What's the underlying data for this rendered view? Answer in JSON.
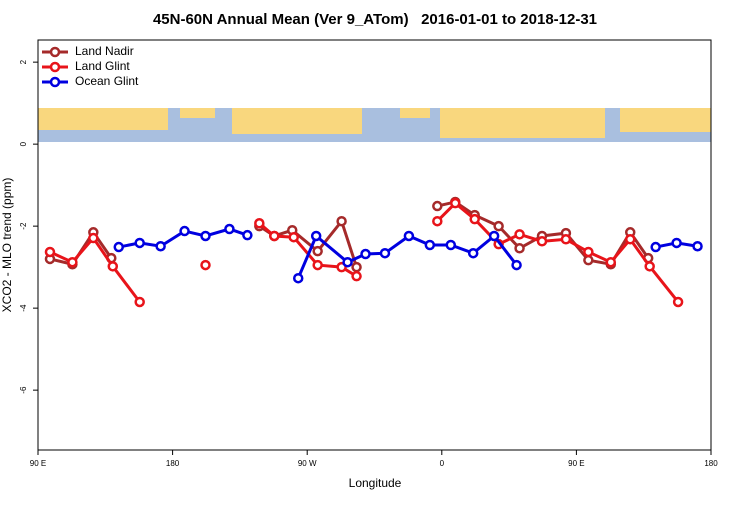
{
  "chart_data": {
    "type": "line",
    "title": "45N-60N Annual Mean (Ver 9_ATom)   2016-01-01 to 2018-12-31",
    "x_label": "Longitude",
    "y_label": "XCO2 - MLO trend (ppm)",
    "xlim": [
      -270,
      180
    ],
    "xticks": [
      {
        "value": -270,
        "label": "90 E"
      },
      {
        "value": -180,
        "label": "180"
      },
      {
        "value": -90,
        "label": "90 W"
      },
      0,
      {
        "value": 90,
        "label": "90 E"
      },
      180
    ],
    "ylim": [
      -7.46,
      2.54
    ],
    "yticks": [
      -6,
      -4,
      -2,
      0,
      2
    ],
    "legend": "top-left",
    "series": [
      {
        "name": "Land Nadir",
        "color": "#a52a2a",
        "x": [
          -262,
          -247,
          -233,
          -221,
          null,
          -122,
          -112,
          -100,
          -83,
          -67,
          -57,
          null,
          -3,
          9,
          22,
          38,
          52,
          67,
          83,
          98,
          113,
          126,
          138
        ],
        "values": [
          -2.8,
          -2.93,
          -2.15,
          -2.78,
          null,
          -2.0,
          -2.24,
          -2.1,
          -2.61,
          -1.88,
          -3.0,
          null,
          -1.51,
          -1.41,
          -1.73,
          -2.0,
          -2.54,
          -2.24,
          -2.17,
          -2.83,
          -2.93,
          -2.15,
          -2.78
        ]
      },
      {
        "name": "Land Glint",
        "color": "#e8141a",
        "x": [
          -262,
          -247,
          -233,
          -220,
          -202,
          null,
          -158,
          null,
          -122,
          -112,
          -99,
          -83,
          -67,
          -57,
          null,
          -3,
          9,
          22,
          38,
          52,
          67,
          83,
          98,
          113,
          126,
          139,
          158
        ],
        "values": [
          -2.63,
          -2.88,
          -2.29,
          -2.98,
          -3.85,
          null,
          -2.95,
          null,
          -1.93,
          -2.24,
          -2.27,
          -2.95,
          -3.0,
          -3.22,
          null,
          -1.88,
          -1.44,
          -1.83,
          -2.44,
          -2.2,
          -2.37,
          -2.32,
          -2.63,
          -2.88,
          -2.32,
          -2.98,
          -3.85
        ]
      },
      {
        "name": "Ocean Glint",
        "color": "#0000e0",
        "x": [
          -216,
          -202,
          -188,
          -172,
          -158,
          -142,
          -130,
          null,
          -96,
          -84,
          -63,
          -51,
          -38,
          -22,
          -8,
          6,
          21,
          35,
          50,
          null,
          143,
          157,
          171
        ],
        "values": [
          -2.51,
          -2.41,
          -2.49,
          -2.12,
          -2.24,
          -2.07,
          -2.22,
          null,
          -3.27,
          -2.24,
          -2.88,
          -2.68,
          -2.66,
          -2.24,
          -2.46,
          -2.46,
          -2.66,
          -2.24,
          -2.95,
          null,
          -2.51,
          -2.41,
          -2.49
        ]
      }
    ]
  }
}
